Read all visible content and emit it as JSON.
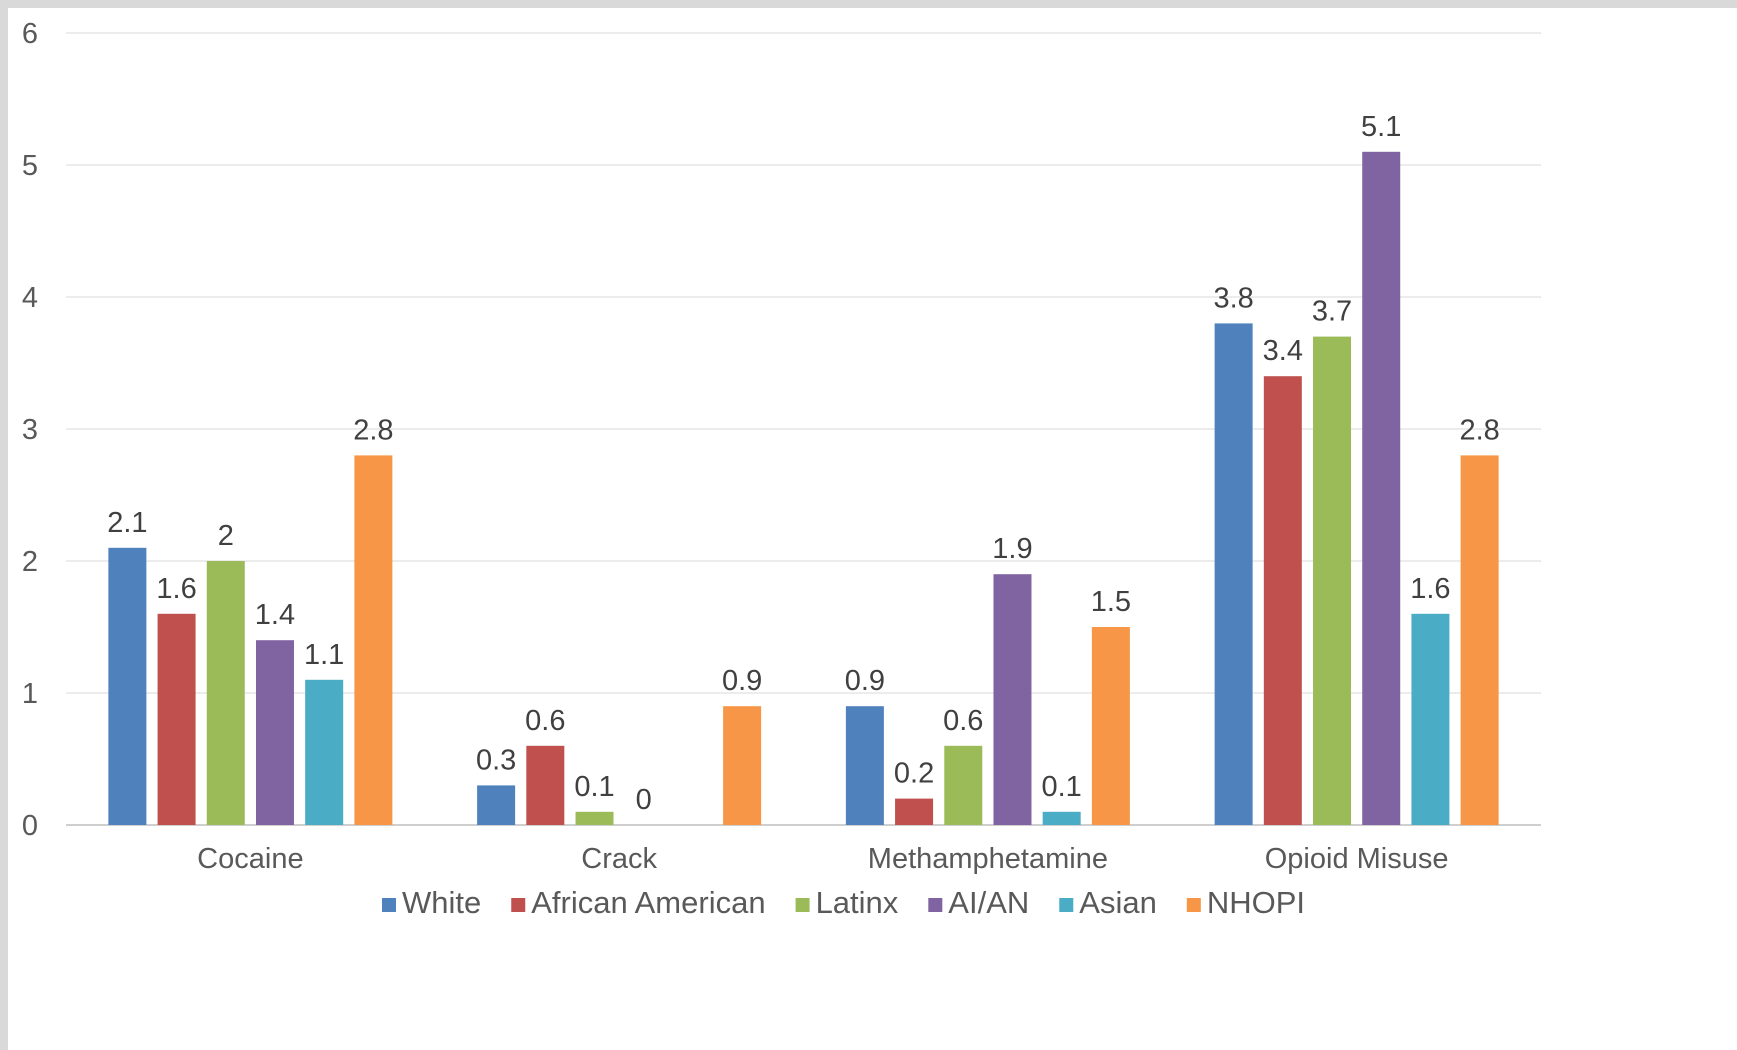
{
  "chart_data": {
    "type": "bar",
    "title": "",
    "xlabel": "",
    "ylabel": "",
    "categories": [
      "Cocaine",
      "Crack",
      "Methamphetamine",
      "Opioid Misuse"
    ],
    "ylim": [
      0,
      6
    ],
    "yticks": [
      0,
      1,
      2,
      3,
      4,
      5,
      6
    ],
    "grid": true,
    "legend_position": "bottom",
    "series": [
      {
        "name": "White",
        "color": "#4f81bd",
        "values": [
          2.1,
          0.3,
          0.9,
          3.8
        ]
      },
      {
        "name": "African American",
        "color": "#c0504d",
        "values": [
          1.6,
          0.6,
          0.2,
          3.4
        ]
      },
      {
        "name": "Latinx",
        "color": "#9bbb59",
        "values": [
          2,
          0.1,
          0.6,
          3.7
        ]
      },
      {
        "name": "AI/AN",
        "color": "#8064a2",
        "values": [
          1.4,
          0,
          1.9,
          5.1
        ]
      },
      {
        "name": "Asian",
        "color": "#4bacc6",
        "values": [
          1.1,
          null,
          0.1,
          1.6
        ]
      },
      {
        "name": "NHOPI",
        "color": "#f79646",
        "values": [
          2.8,
          0.9,
          1.5,
          2.8
        ]
      }
    ]
  }
}
